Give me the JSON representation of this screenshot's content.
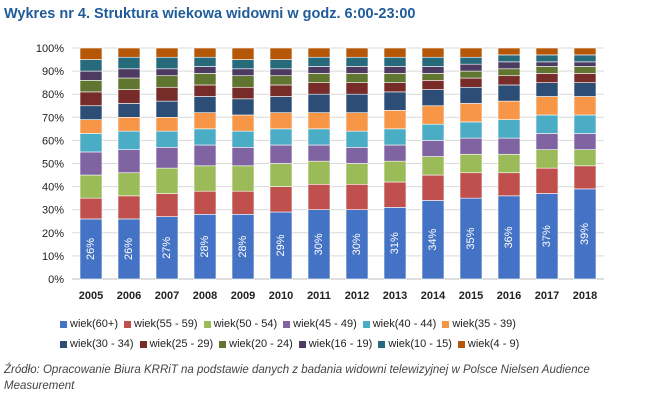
{
  "title": "Wykres nr 4. Struktura wiekowa widowni w godz. 6:00-23:00",
  "source": "Źródło: Opracowanie Biura KRRiT na podstawie danych z badania widowni telewizyjnej w Polsce Nielsen Audience Measurement",
  "chart_data": {
    "type": "bar",
    "stacked": true,
    "normalized": true,
    "categories": [
      "2005",
      "2006",
      "2007",
      "2008",
      "2009",
      "2010",
      "2011",
      "2012",
      "2013",
      "2014",
      "2015",
      "2016",
      "2017",
      "2018"
    ],
    "ylim": [
      0,
      100
    ],
    "yticks": [
      "0%",
      "10%",
      "20%",
      "30%",
      "40%",
      "50%",
      "60%",
      "70%",
      "80%",
      "90%",
      "100%"
    ],
    "grid": true,
    "legend_position": "bottom",
    "series": [
      {
        "name": "wiek(60+)",
        "color": "#4472c4",
        "values": [
          26,
          26,
          27,
          28,
          28,
          29,
          30,
          30,
          31,
          34,
          35,
          36,
          37,
          39
        ],
        "labels": [
          "26%",
          "26%",
          "27%",
          "28%",
          "28%",
          "29%",
          "30%",
          "30%",
          "31%",
          "34%",
          "35%",
          "36%",
          "37%",
          "39%"
        ]
      },
      {
        "name": "wiek(55 - 59)",
        "color": "#c0504d",
        "values": [
          9,
          10,
          10,
          10,
          10,
          11,
          11,
          11,
          11,
          11,
          11,
          10,
          11,
          10
        ]
      },
      {
        "name": "wiek(50 - 54)",
        "color": "#9bbb59",
        "values": [
          10,
          10,
          11,
          11,
          11,
          10,
          10,
          9,
          9,
          8,
          8,
          8,
          8,
          7
        ]
      },
      {
        "name": "wiek(45 - 49)",
        "color": "#8064a2",
        "values": [
          10,
          10,
          9,
          9,
          8,
          8,
          7,
          7,
          7,
          7,
          7,
          7,
          7,
          7
        ]
      },
      {
        "name": "wiek(40 - 44)",
        "color": "#4bacc6",
        "values": [
          8,
          8,
          7,
          7,
          7,
          7,
          7,
          7,
          7,
          7,
          7,
          8,
          8,
          8
        ]
      },
      {
        "name": "wiek(35 - 39)",
        "color": "#f79646",
        "values": [
          6,
          6,
          6,
          7,
          7,
          7,
          7,
          8,
          8,
          8,
          8,
          8,
          8,
          8
        ]
      },
      {
        "name": "wiek(30 - 34)",
        "color": "#2c4d75",
        "values": [
          6,
          6,
          7,
          7,
          7,
          7,
          8,
          8,
          8,
          7,
          7,
          7,
          6,
          6
        ]
      },
      {
        "name": "wiek(25 - 29)",
        "color": "#772c2a",
        "values": [
          6,
          6,
          6,
          5,
          5,
          5,
          5,
          5,
          4,
          4,
          4,
          4,
          4,
          4
        ]
      },
      {
        "name": "wiek(20 - 24)",
        "color": "#5f7530",
        "values": [
          5,
          5,
          5,
          5,
          5,
          4,
          4,
          4,
          4,
          3,
          3,
          3,
          3,
          3
        ]
      },
      {
        "name": "wiek(16 - 19)",
        "color": "#4d3b62",
        "values": [
          4,
          4,
          3,
          3,
          3,
          3,
          3,
          3,
          3,
          3,
          3,
          3,
          2,
          2
        ]
      },
      {
        "name": "wiek(10 - 15)",
        "color": "#276a7c",
        "values": [
          5,
          5,
          5,
          4,
          4,
          4,
          4,
          4,
          4,
          4,
          3,
          3,
          3,
          3
        ]
      },
      {
        "name": "wiek(4 - 9)",
        "color": "#b65708",
        "values": [
          5,
          4,
          4,
          4,
          5,
          5,
          4,
          4,
          4,
          4,
          4,
          3,
          3,
          3
        ]
      }
    ],
    "legend_rows": [
      [
        "wiek(60+)",
        "wiek(55 - 59)",
        "wiek(50 - 54)",
        "wiek(45 - 49)",
        "wiek(40 - 44)",
        "wiek(35 - 39)"
      ],
      [
        "wiek(30 - 34)",
        "wiek(25 - 29)",
        "wiek(20 - 24)",
        "wiek(16 - 19)",
        "wiek(10 - 15)",
        "wiek(4 - 9)"
      ]
    ]
  }
}
